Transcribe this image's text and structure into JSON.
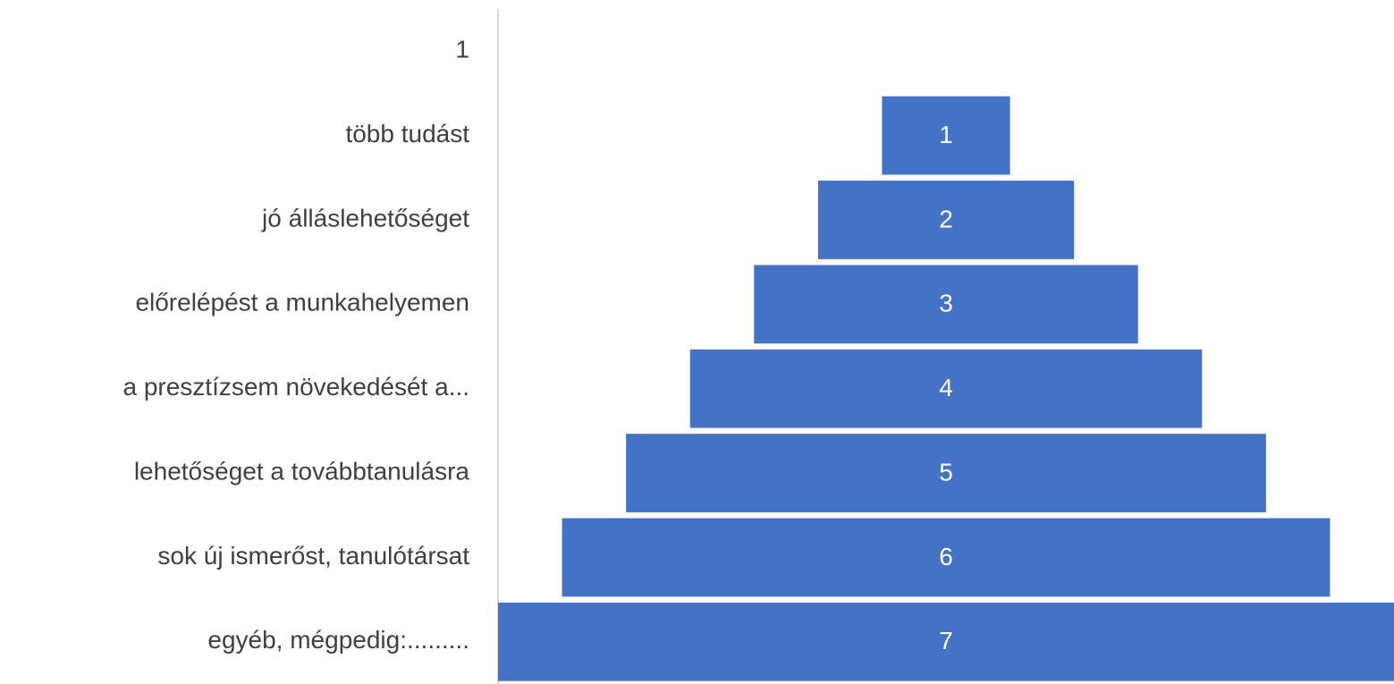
{
  "chart_data": {
    "type": "funnel",
    "categories": [
      "1",
      "több tudást",
      "jó álláslehetőséget",
      "előrelépést a munkahelyemen",
      "a presztízsem növekedését a...",
      "lehetőséget a továbbtanulásra",
      "sok új ismerőst, tanulótársat",
      "egyéb, mégpedig:........."
    ],
    "values": [
      null,
      1,
      2,
      3,
      4,
      5,
      6,
      7
    ],
    "color": "#4472c4"
  }
}
